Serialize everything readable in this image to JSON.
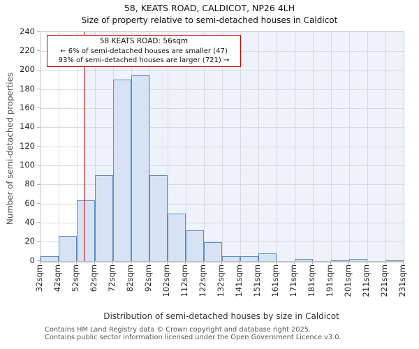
{
  "title": "58, KEATS ROAD, CALDICOT, NP26 4LH",
  "subtitle": "Size of property relative to semi-detached houses in Caldicot",
  "annotation": {
    "line1": "58 KEATS ROAD: 56sqm",
    "line2": "← 6% of semi-detached houses are smaller (47)",
    "line3": "93% of semi-detached houses are larger (721) →"
  },
  "chart_data": {
    "type": "bar",
    "title": "58, KEATS ROAD, CALDICOT, NP26 4LH",
    "subtitle": "Size of property relative to semi-detached houses in Caldicot",
    "xlabel": "Distribution of semi-detached houses by size in Caldicot",
    "ylabel": "Number of semi-detached properties",
    "categories": [
      "32sqm",
      "42sqm",
      "52sqm",
      "62sqm",
      "72sqm",
      "82sqm",
      "92sqm",
      "102sqm",
      "112sqm",
      "122sqm",
      "132sqm",
      "141sqm",
      "151sqm",
      "161sqm",
      "171sqm",
      "181sqm",
      "191sqm",
      "201sqm",
      "211sqm",
      "221sqm",
      "231sqm"
    ],
    "bin_edges": [
      32,
      42,
      52,
      62,
      72,
      82,
      92,
      102,
      112,
      122,
      132,
      141,
      151,
      161,
      171,
      181,
      191,
      201,
      211,
      221,
      231
    ],
    "values": [
      5,
      26,
      64,
      90,
      190,
      195,
      90,
      50,
      32,
      20,
      5,
      5,
      8,
      0,
      2,
      0,
      1,
      2,
      0,
      1
    ],
    "ylim": [
      0,
      240
    ],
    "ytick_step": 20,
    "grid": true,
    "legend": "none",
    "marker": {
      "label": "58 KEATS ROAD",
      "sqm": 56
    }
  },
  "colors": {
    "bar_fill": "#d7e3f4",
    "bar_stroke": "#5b8dc9",
    "marker_line": "#cc0000",
    "annotation_border": "#cc0000",
    "larger_region_tint": "#eef2fb",
    "gridline": "#d9d9d9"
  },
  "footer": {
    "line1": "Contains HM Land Registry data © Crown copyright and database right 2025.",
    "line2": "Contains public sector information licensed under the Open Government Licence v3.0."
  }
}
